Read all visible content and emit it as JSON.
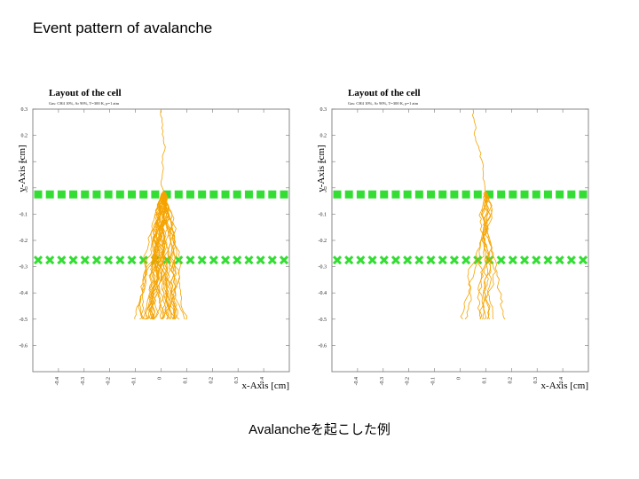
{
  "slide": {
    "title": "Event pattern of avalanche",
    "caption": "Avalancheを起こした例"
  },
  "colors": {
    "wire": "#33dd33",
    "track": "#f5a300",
    "frame": "#888888",
    "text": "#000000"
  },
  "chart_data": [
    {
      "type": "scatter",
      "title": "Layout of the cell",
      "subtitle": "Gas: CH4 10%, Ar 90%, T=300 K, p=1 atm",
      "xlabel": "x-Axis [cm]",
      "ylabel": "y-Axis [cm]",
      "xlim": [
        -0.5,
        0.5
      ],
      "ylim": [
        -0.7,
        0.3
      ],
      "x_ticks": [
        "-0.4",
        "-0.3",
        "-0.2",
        "-0.1",
        "0",
        "0.1",
        "0.2",
        "0.3",
        "0.4"
      ],
      "y_ticks": [
        "0.3",
        "0.2",
        "0.1",
        "0",
        "-0.1",
        "-0.2",
        "-0.3",
        "-0.4",
        "-0.5",
        "-0.6"
      ],
      "wire_rows": [
        {
          "y": -0.025,
          "style": "solid"
        },
        {
          "y": -0.275,
          "style": "cross"
        }
      ],
      "avalanche": {
        "start_x": 0.0,
        "start_y": 0.3,
        "bottom_y": -0.5,
        "spread": 0.06,
        "tracks": 36
      }
    },
    {
      "type": "scatter",
      "title": "Layout of the cell",
      "subtitle": "Gas: CH4 10%, Ar 90%, T=300 K, p=1 atm",
      "xlabel": "x-Axis [cm]",
      "ylabel": "y-Axis [cm]",
      "xlim": [
        -0.5,
        0.5
      ],
      "ylim": [
        -0.7,
        0.3
      ],
      "x_ticks": [
        "-0.4",
        "-0.3",
        "-0.2",
        "-0.1",
        "0",
        "0.1",
        "0.2",
        "0.3",
        "0.4"
      ],
      "y_ticks": [
        "0.3",
        "0.2",
        "0.1",
        "0",
        "-0.1",
        "-0.2",
        "-0.3",
        "-0.4",
        "-0.5",
        "-0.6"
      ],
      "wire_rows": [
        {
          "y": -0.025,
          "style": "solid"
        },
        {
          "y": -0.275,
          "style": "cross"
        }
      ],
      "avalanche": {
        "start_x": 0.05,
        "start_y": 0.3,
        "bottom_y": -0.5,
        "spread": 0.04,
        "tracks": 10
      }
    }
  ]
}
